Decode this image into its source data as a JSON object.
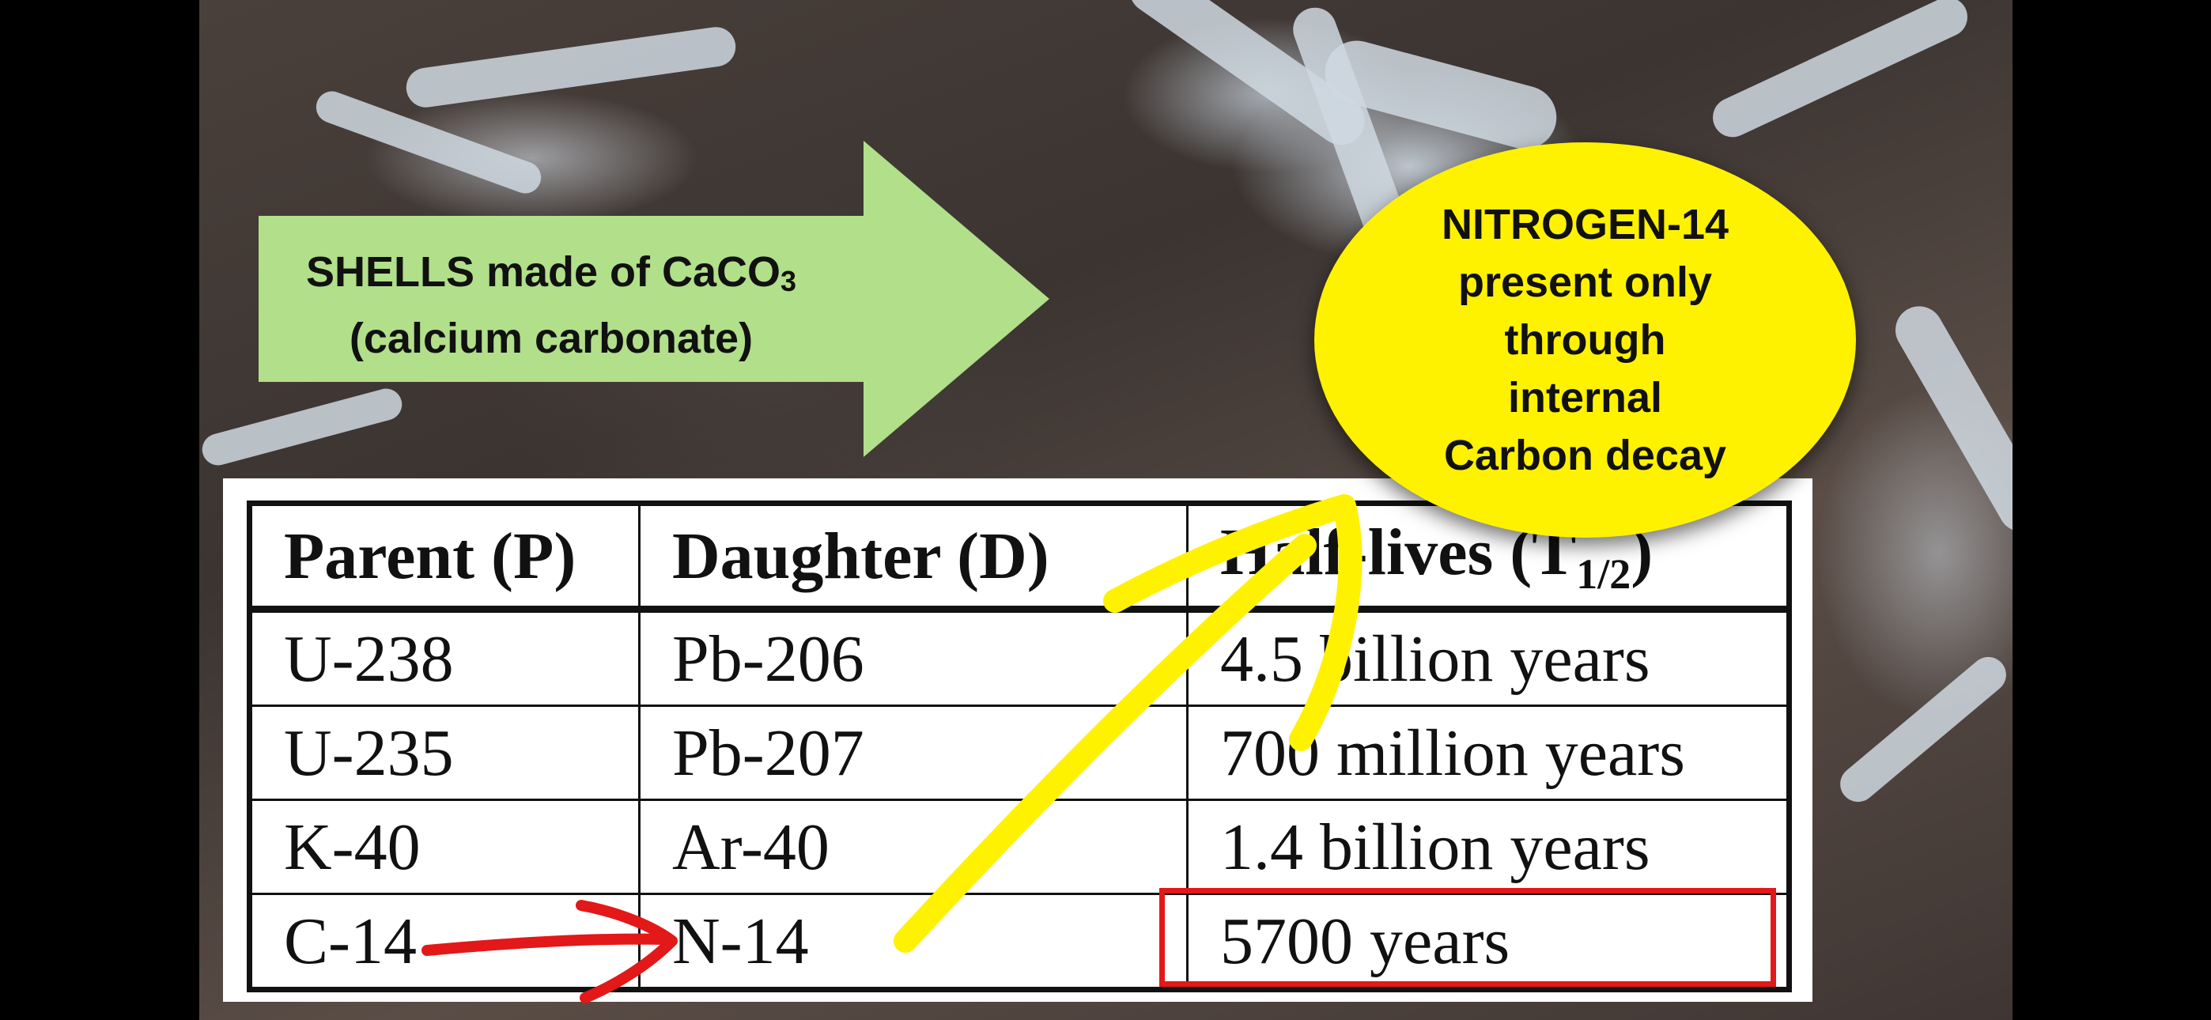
{
  "arrow_label": {
    "line1": "SHELLS made of CaCO",
    "line1_sub": "3",
    "line2": "(calcium carbonate)"
  },
  "callout": {
    "lines": [
      "NITROGEN-14",
      "present only",
      "through",
      "internal",
      "Carbon decay"
    ]
  },
  "table": {
    "headers": [
      "Parent (P)",
      "Daughter (D)",
      "Half-lives (T1/2)"
    ],
    "rows": [
      [
        "U-238",
        "Pb-206",
        "4.5 billion years"
      ],
      [
        "U-235",
        "Pb-207",
        "700 million years"
      ],
      [
        "K-40",
        "Ar-40",
        "1.4 billion years"
      ],
      [
        "C-14",
        "N-14",
        "5700 years"
      ]
    ]
  },
  "colors": {
    "arrow_fill": "#b2df8a",
    "callout_fill": "#fff200",
    "highlight_box": "#e31818",
    "red_arrow": "#e31818",
    "yellow_arrow": "#fff200"
  }
}
